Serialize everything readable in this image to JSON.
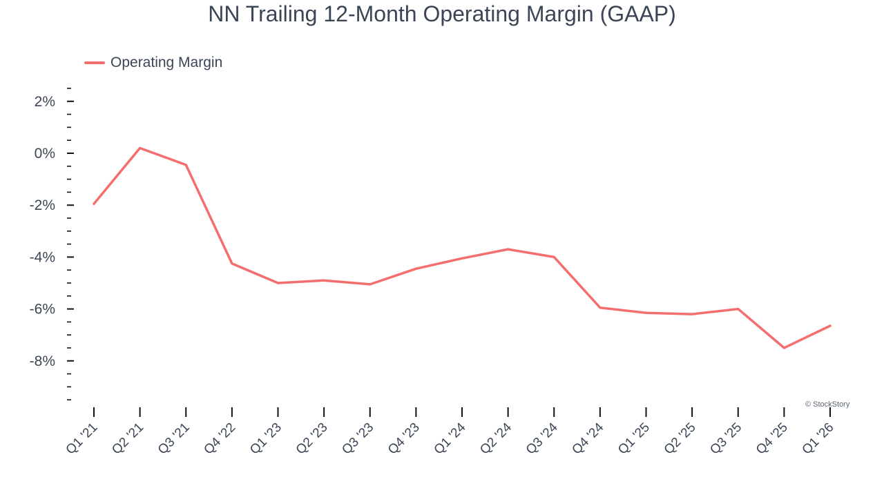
{
  "chart_data": {
    "type": "line",
    "title": "NN Trailing 12-Month Operating Margin (GAAP)",
    "xlabel": "",
    "ylabel": "",
    "categories": [
      "Q1 '21",
      "Q2 '21",
      "Q3 '21",
      "Q4 '22",
      "Q1 '23",
      "Q2 '23",
      "Q3 '23",
      "Q4 '23",
      "Q1 '24",
      "Q2 '24",
      "Q3 '24",
      "Q4 '24",
      "Q1 '25",
      "Q2 '25",
      "Q3 '25",
      "Q4 '25",
      "Q1 '26"
    ],
    "series": [
      {
        "name": "Operating Margin",
        "color": "#f46e6e",
        "values": [
          -1.95,
          0.2,
          -0.45,
          -4.25,
          -5.0,
          -4.9,
          -5.05,
          -4.45,
          -4.05,
          -3.7,
          -4.0,
          -5.95,
          -6.15,
          -6.2,
          -6.0,
          -7.5,
          -6.65
        ]
      }
    ],
    "y_ticks": [
      "2%",
      "0%",
      "-2%",
      "-4%",
      "-6%",
      "-8%"
    ],
    "y_tick_values": [
      2,
      0,
      -2,
      -4,
      -6,
      -8
    ],
    "ylim": [
      -9.6,
      2.6
    ],
    "grid": false,
    "legend_position": "top-left"
  },
  "watermark": "© StockStory"
}
